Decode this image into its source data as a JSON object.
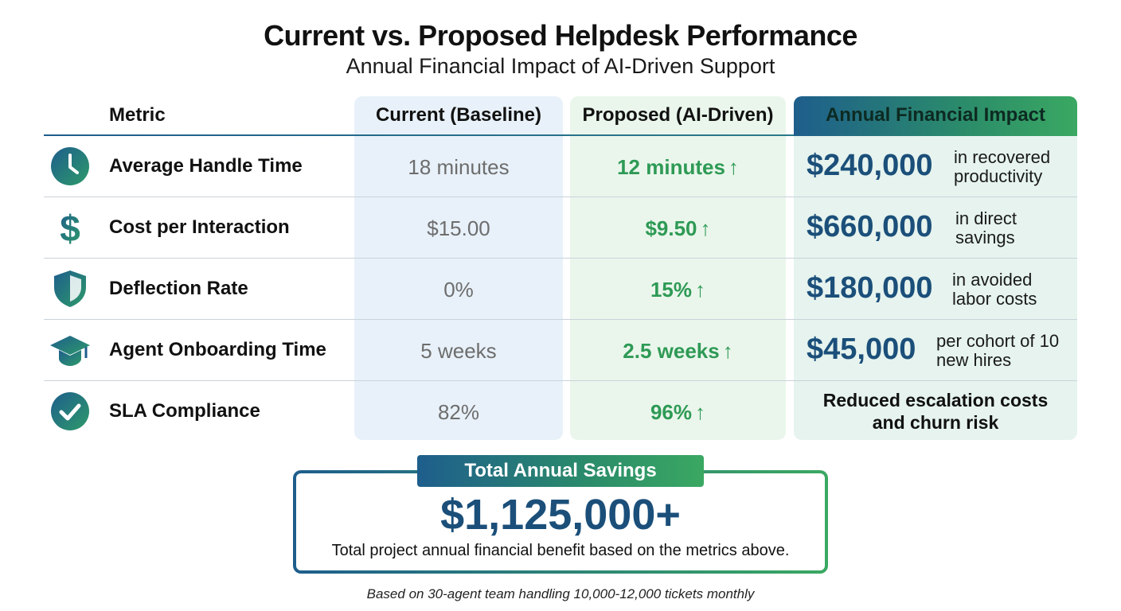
{
  "title": "Current vs. Proposed Helpdesk Performance",
  "subtitle": "Annual Financial Impact of AI-Driven Support",
  "headers": {
    "metric": "Metric",
    "current": "Current (Baseline)",
    "proposed": "Proposed (AI-Driven)",
    "impact": "Annual Financial Impact"
  },
  "colors": {
    "accent_blue": "#1b4f7a",
    "accent_green": "#2e9a55",
    "current_column_bg": "#e8f1f9",
    "proposed_column_bg": "#eaf6ec",
    "impact_column_bg": "#e6f3ee"
  },
  "rows": [
    {
      "icon": "clock-icon",
      "metric": "Average Handle Time",
      "current": "18 minutes",
      "proposed": "12 minutes",
      "proposed_arrow": "↑",
      "impact_amount": "$240,000",
      "impact_note_1": "in recovered",
      "impact_note_2": "productivity"
    },
    {
      "icon": "dollar-icon",
      "metric": "Cost per Interaction",
      "current": "$15.00",
      "proposed": "$9.50",
      "proposed_arrow": "↑",
      "impact_amount": "$660,000",
      "impact_note_1": "in direct",
      "impact_note_2": "savings"
    },
    {
      "icon": "shield-icon",
      "metric": "Deflection Rate",
      "current": "0%",
      "proposed": "15%",
      "proposed_arrow": "↑",
      "impact_amount": "$180,000",
      "impact_note_1": "in avoided",
      "impact_note_2": "labor costs"
    },
    {
      "icon": "graduation-cap-icon",
      "metric": "Agent Onboarding Time",
      "current": "5 weeks",
      "proposed": "2.5 weeks",
      "proposed_arrow": "↑",
      "impact_amount": "$45,000",
      "impact_note_1": "per cohort of 10",
      "impact_note_2": "new hires"
    },
    {
      "icon": "checkmark-circle-icon",
      "metric": "SLA Compliance",
      "current": "82%",
      "proposed": "96%",
      "proposed_arrow": "↑",
      "impact_text_1": "Reduced escalation costs",
      "impact_text_2": "and churn risk"
    }
  ],
  "savings": {
    "badge": "Total Annual Savings",
    "total": "$1,125,000+",
    "description": "Total project annual financial benefit based on the metrics above."
  },
  "footnote": "Based on 30-agent team handling 10,000-12,000 tickets monthly"
}
